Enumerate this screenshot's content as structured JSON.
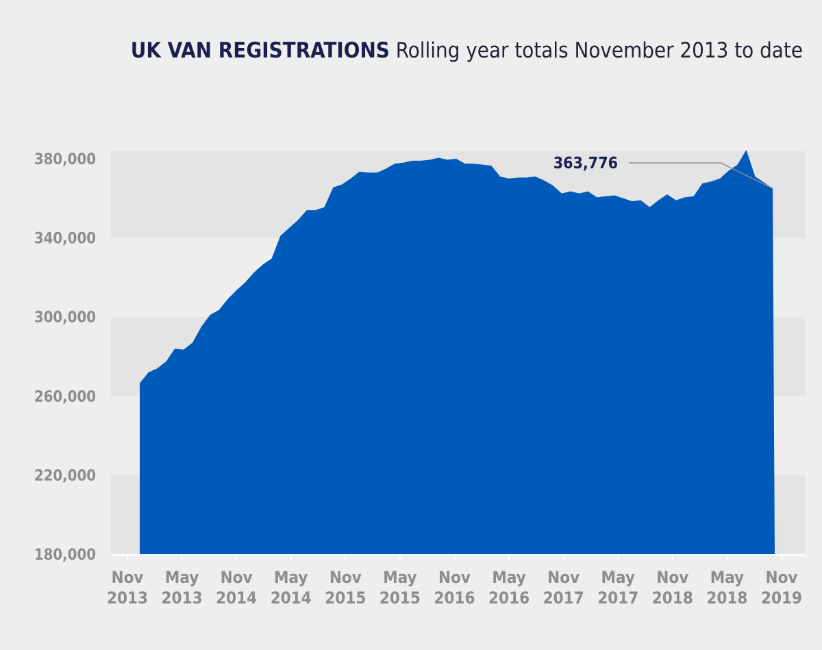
{
  "chart_data": {
    "type": "area",
    "title": "UK VAN REGISTRATIONS",
    "subtitle": "Rolling year totals November 2013 to date",
    "xlabel": "",
    "ylabel": "",
    "ylim": [
      180000,
      380000
    ],
    "yticks": [
      "380,000",
      "340,000",
      "300,000",
      "260,000",
      "220,000",
      "180,000"
    ],
    "ytick_values": [
      380000,
      340000,
      300000,
      260000,
      220000,
      180000
    ],
    "xticks": [
      {
        "month": "Nov",
        "year": "2013"
      },
      {
        "month": "May",
        "year": "2013"
      },
      {
        "month": "Nov",
        "year": "2014"
      },
      {
        "month": "May",
        "year": "2014"
      },
      {
        "month": "Nov",
        "year": "2015"
      },
      {
        "month": "May",
        "year": "2015"
      },
      {
        "month": "Nov",
        "year": "2016"
      },
      {
        "month": "May",
        "year": "2016"
      },
      {
        "month": "Nov",
        "year": "2017"
      },
      {
        "month": "May",
        "year": "2017"
      },
      {
        "month": "Nov",
        "year": "2018"
      },
      {
        "month": "May",
        "year": "2018"
      },
      {
        "month": "Nov",
        "year": "2019"
      }
    ],
    "grid": "alternating-bands",
    "colors": {
      "area": "#005ab9",
      "band": "#e4e4e4",
      "background": "#eeeeee",
      "axis": "#ffffff",
      "leader": "#8c8c91"
    },
    "series": [
      {
        "values": [
          266500,
          272000,
          274000,
          277500,
          284000,
          283500,
          287000,
          295000,
          301000,
          303500,
          309000,
          313500,
          317500,
          322500,
          326500,
          329500,
          341000,
          345000,
          349000,
          354000,
          354000,
          355500,
          365500,
          367000,
          370000,
          373500,
          373000,
          373000,
          375000,
          377500,
          378000,
          379000,
          379000,
          379500,
          380500,
          379500,
          380000,
          377500,
          377500,
          377000,
          376500,
          371000,
          370000,
          370500,
          370500,
          371000,
          369000,
          366500,
          362500,
          363500,
          362500,
          363500,
          360500,
          361000,
          361500,
          360000,
          358500,
          359000,
          355500,
          359000,
          362000,
          359000,
          360500,
          361000,
          367500,
          368500,
          370000,
          374000,
          377000,
          384500,
          371000,
          368000,
          365000
        ]
      }
    ],
    "annotation": {
      "label": "363,776",
      "value": 363776
    }
  }
}
